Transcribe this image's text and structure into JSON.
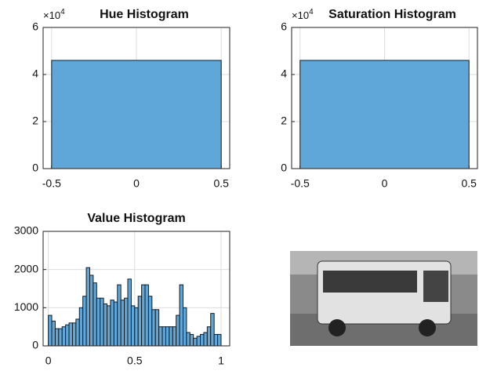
{
  "chart_data": [
    {
      "type": "histogram",
      "title": "Hue Histogram",
      "y_exponent": {
        "base": "×10",
        "power": "4"
      },
      "bins": [
        -0.5,
        0.5
      ],
      "values": [
        46000
      ],
      "color": "#5fa6d9",
      "edgecolor": "#1a1a1a",
      "grid": true,
      "xlim": [
        -0.55,
        0.55
      ],
      "xticks": [
        -0.5,
        0,
        0.5
      ],
      "ylim": [
        0,
        60000
      ],
      "yticks": [
        0,
        {
          "value": 20000,
          "label": "2"
        },
        {
          "value": 40000,
          "label": "4"
        },
        {
          "value": 60000,
          "label": "6"
        }
      ]
    },
    {
      "type": "histogram",
      "title": "Saturation Histogram",
      "y_exponent": {
        "base": "×10",
        "power": "4"
      },
      "bins": [
        -0.5,
        0.5
      ],
      "values": [
        46000
      ],
      "color": "#5fa6d9",
      "edgecolor": "#1a1a1a",
      "grid": true,
      "xlim": [
        -0.55,
        0.55
      ],
      "xticks": [
        -0.5,
        0,
        0.5
      ],
      "ylim": [
        0,
        60000
      ],
      "yticks": [
        0,
        {
          "value": 20000,
          "label": "2"
        },
        {
          "value": 40000,
          "label": "4"
        },
        {
          "value": 60000,
          "label": "6"
        }
      ]
    },
    {
      "type": "histogram",
      "title": "Value Histogram",
      "bins": [
        0,
        0.02,
        0.04,
        0.06,
        0.08,
        0.1,
        0.12,
        0.14,
        0.16,
        0.18,
        0.2,
        0.22,
        0.24,
        0.26,
        0.28,
        0.3,
        0.32,
        0.34,
        0.36,
        0.38,
        0.4,
        0.42,
        0.44,
        0.46,
        0.48,
        0.5,
        0.52,
        0.54,
        0.56,
        0.58,
        0.6,
        0.62,
        0.64,
        0.66,
        0.68,
        0.7,
        0.72,
        0.74,
        0.76,
        0.78,
        0.8,
        0.82,
        0.84,
        0.86,
        0.88,
        0.9,
        0.92,
        0.94,
        0.96,
        0.98,
        1
      ],
      "values": [
        800,
        650,
        450,
        450,
        500,
        550,
        600,
        600,
        700,
        1000,
        1300,
        2050,
        1850,
        1650,
        1250,
        1250,
        1100,
        1050,
        1200,
        1150,
        1600,
        1200,
        1250,
        1750,
        1050,
        1000,
        1300,
        1600,
        1600,
        1300,
        950,
        950,
        500,
        500,
        500,
        500,
        500,
        800,
        1600,
        1000,
        350,
        300,
        200,
        250,
        300,
        350,
        500,
        850,
        300,
        300
      ],
      "color": "#5fa6d9",
      "edgecolor": "#1a1a1a",
      "grid": true,
      "xlim": [
        -0.03,
        1.05
      ],
      "xticks": [
        0,
        0.5,
        1
      ],
      "ylim": [
        0,
        3000
      ],
      "yticks": [
        0,
        1000,
        2000,
        3000
      ]
    }
  ]
}
